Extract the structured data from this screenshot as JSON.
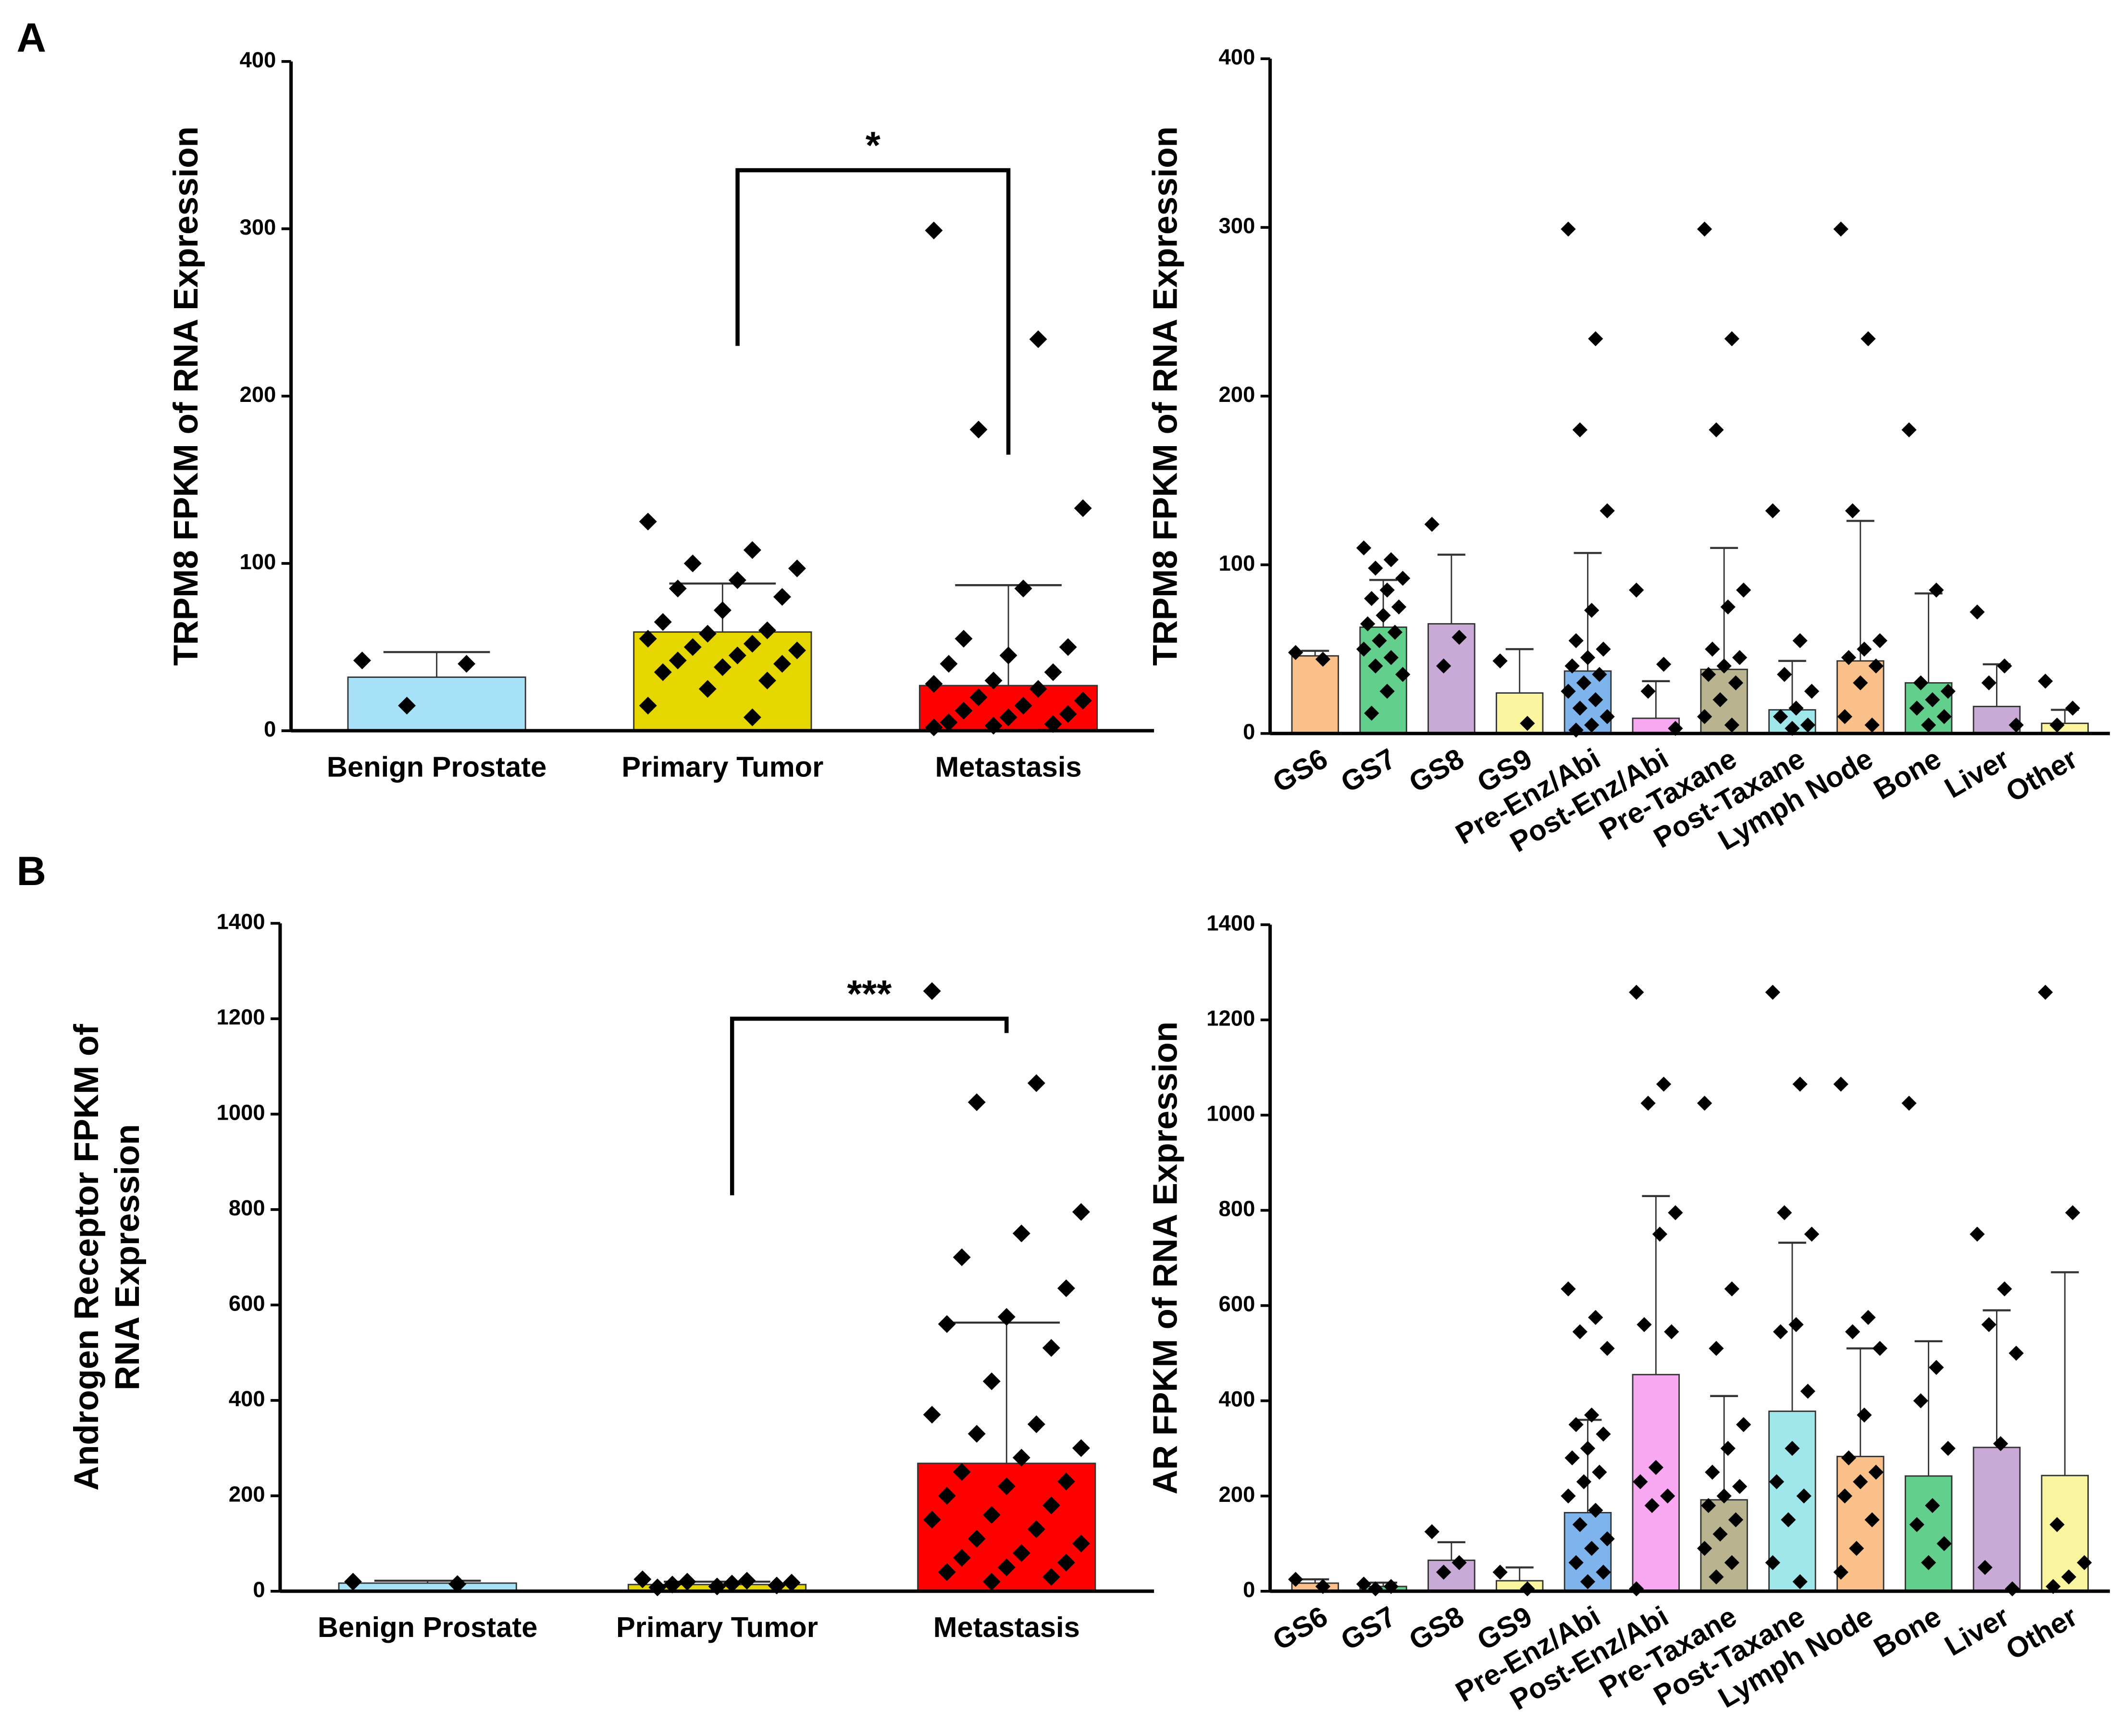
{
  "panels": [
    "A",
    "B"
  ],
  "chart_data": [
    {
      "type": "bar",
      "ylabel": [
        "TRPM8 FPKM of RNA Expression"
      ],
      "categories": [
        "Benign Prostate",
        "Primary Tumor",
        "Metastasis"
      ],
      "colors": [
        "#a8e2f8",
        "#e6d600",
        "#ff0000"
      ],
      "values": [
        32,
        59,
        27
      ],
      "error_upper": [
        47,
        88,
        87
      ],
      "points": [
        [
          42,
          40,
          15
        ],
        [
          125,
          108,
          100,
          97,
          90,
          85,
          80,
          72,
          65,
          60,
          58,
          55,
          52,
          50,
          48,
          45,
          42,
          40,
          38,
          35,
          30,
          25,
          15,
          8
        ],
        [
          299,
          234,
          180,
          133,
          85,
          55,
          50,
          45,
          40,
          35,
          30,
          28,
          25,
          20,
          18,
          15,
          12,
          10,
          8,
          5,
          4,
          3,
          2
        ]
      ],
      "ylim": [
        0,
        400
      ],
      "yticks": [
        0,
        100,
        200,
        300,
        400
      ],
      "annotation": {
        "text": "*",
        "y": 335,
        "y_left": 230,
        "y_right": 165
      }
    },
    {
      "type": "bar",
      "ylabel": [
        "TRPM8 FPKM of RNA Expression"
      ],
      "categories": [
        "GS6",
        "GS7",
        "GS8",
        "GS9",
        "Pre-Enz/Abi",
        "Post-Enz/Abi",
        "Pre-Taxane",
        "Post-Taxane",
        "Lymph Node",
        "Bone",
        "Liver",
        "Other"
      ],
      "colors": [
        "#f9c08a",
        "#62cf8c",
        "#c9a9d6",
        "#fbf5a0",
        "#7fb3ec",
        "#f7a8f1",
        "#b9b48f",
        "#a0e7ec",
        "#f9c08a",
        "#62cf8c",
        "#c9a9d6",
        "#fbf5a0"
      ],
      "values": [
        46,
        63,
        65,
        24,
        37,
        9,
        38,
        14,
        43,
        30,
        16,
        6
      ],
      "error_upper": [
        49,
        91,
        106,
        50,
        107,
        31,
        110,
        43,
        126,
        83,
        41,
        14
      ],
      "points": [
        [
          48,
          44
        ],
        [
          110,
          103,
          98,
          92,
          85,
          80,
          75,
          70,
          65,
          60,
          55,
          50,
          45,
          40,
          35,
          25,
          12
        ],
        [
          124,
          57,
          40
        ],
        [
          43,
          6
        ],
        [
          299,
          234,
          180,
          132,
          73,
          55,
          50,
          45,
          40,
          35,
          30,
          25,
          20,
          15,
          10,
          5,
          2
        ],
        [
          85,
          41,
          25,
          3
        ],
        [
          299,
          234,
          180,
          85,
          75,
          50,
          45,
          40,
          35,
          30,
          20,
          10,
          5
        ],
        [
          132,
          55,
          35,
          25,
          15,
          10,
          5,
          3
        ],
        [
          299,
          234,
          132,
          55,
          50,
          45,
          40,
          30,
          10,
          5
        ],
        [
          180,
          85,
          30,
          25,
          20,
          15,
          10,
          5
        ],
        [
          72,
          40,
          30,
          5
        ],
        [
          31,
          15,
          5
        ]
      ],
      "ylim": [
        0,
        400
      ],
      "yticks": [
        0,
        100,
        200,
        300,
        400
      ]
    },
    {
      "type": "bar",
      "ylabel": [
        "Androgen Receptor FPKM of",
        "RNA Expression"
      ],
      "categories": [
        "Benign Prostate",
        "Primary Tumor",
        "Metastasis"
      ],
      "colors": [
        "#a8e2f8",
        "#e6d600",
        "#ff0000"
      ],
      "values": [
        17,
        14,
        268
      ],
      "error_upper": [
        22,
        20,
        563
      ],
      "points": [
        [
          20,
          15
        ],
        [
          25,
          22,
          20,
          18,
          16,
          14,
          12,
          10,
          8
        ],
        [
          1258,
          1065,
          1025,
          795,
          750,
          700,
          635,
          575,
          560,
          510,
          440,
          370,
          350,
          330,
          300,
          280,
          250,
          230,
          220,
          200,
          180,
          160,
          150,
          130,
          110,
          100,
          80,
          70,
          60,
          50,
          40,
          30,
          20
        ]
      ],
      "ylim": [
        0,
        1400
      ],
      "yticks": [
        0,
        200,
        400,
        600,
        800,
        1000,
        1200,
        1400
      ],
      "annotation": {
        "text": "***",
        "y": 1200,
        "y_left": 830,
        "y_right": 1170
      }
    },
    {
      "type": "bar",
      "ylabel": [
        "AR FPKM of RNA Expression"
      ],
      "categories": [
        "GS6",
        "GS7",
        "GS8",
        "GS9",
        "Pre-Enz/Abi",
        "Post-Enz/Abi",
        "Pre-Taxane",
        "Post-Taxane",
        "Lymph Node",
        "Bone",
        "Liver",
        "Other"
      ],
      "colors": [
        "#f9c08a",
        "#62cf8c",
        "#c9a9d6",
        "#fbf5a0",
        "#7fb3ec",
        "#f7a8f1",
        "#b9b48f",
        "#a0e7ec",
        "#f9c08a",
        "#62cf8c",
        "#c9a9d6",
        "#fbf5a0"
      ],
      "values": [
        17,
        10,
        65,
        22,
        165,
        455,
        192,
        378,
        283,
        242,
        302,
        243
      ],
      "error_upper": [
        25,
        18,
        103,
        50,
        360,
        830,
        410,
        732,
        510,
        525,
        590,
        670
      ],
      "points": [
        [
          25,
          10
        ],
        [
          15,
          10,
          5
        ],
        [
          125,
          60,
          40
        ],
        [
          40,
          5
        ],
        [
          635,
          575,
          545,
          510,
          370,
          350,
          330,
          300,
          280,
          250,
          230,
          200,
          170,
          140,
          110,
          90,
          60,
          40,
          20
        ],
        [
          1258,
          1065,
          1025,
          795,
          750,
          560,
          545,
          260,
          230,
          200,
          180,
          5
        ],
        [
          1025,
          635,
          510,
          350,
          300,
          250,
          220,
          200,
          180,
          150,
          120,
          90,
          60,
          30
        ],
        [
          1258,
          1065,
          795,
          750,
          560,
          545,
          420,
          300,
          230,
          200,
          150,
          60,
          20
        ],
        [
          1065,
          575,
          545,
          510,
          370,
          280,
          250,
          230,
          200,
          150,
          90,
          40
        ],
        [
          1025,
          470,
          400,
          300,
          180,
          140,
          100,
          60
        ],
        [
          750,
          635,
          560,
          500,
          310,
          50,
          5
        ],
        [
          1258,
          795,
          140,
          60,
          30,
          10
        ]
      ],
      "ylim": [
        0,
        1400
      ],
      "yticks": [
        0,
        200,
        400,
        600,
        800,
        1000,
        1200,
        1400
      ]
    }
  ]
}
